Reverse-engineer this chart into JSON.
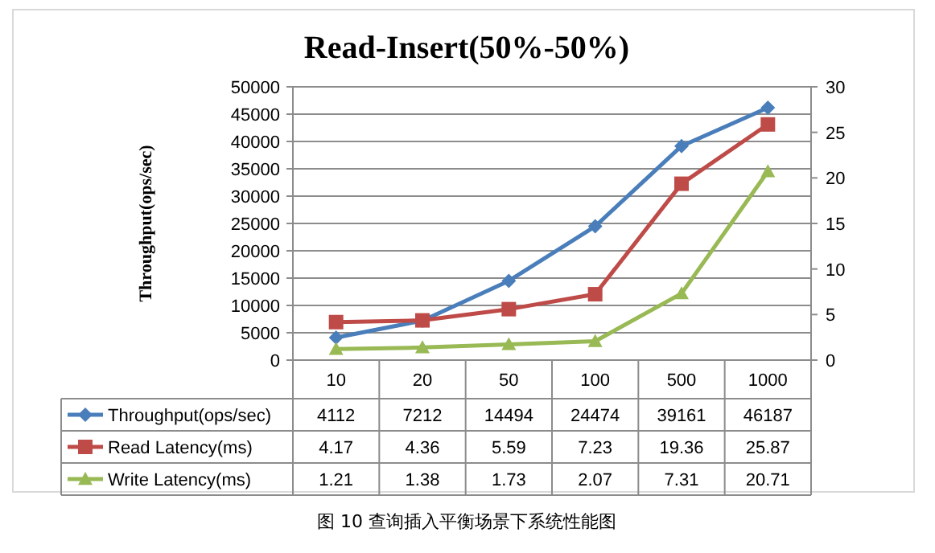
{
  "chart_data": {
    "type": "line",
    "title": "Read-Insert(50%-50%)",
    "ylabel": "Throughput(ops/sec)",
    "categories": [
      "10",
      "20",
      "50",
      "100",
      "500",
      "1000"
    ],
    "series": [
      {
        "name": "Throughput(ops/sec)",
        "color": "#4a7ebb",
        "marker": "diamond",
        "values": [
          4112,
          7212,
          14494,
          24474,
          39161,
          46187
        ]
      },
      {
        "name": "Read Latency(ms)",
        "color": "#be4b48",
        "marker": "square",
        "axis": "y2",
        "values": [
          4.17,
          4.36,
          5.59,
          7.23,
          19.36,
          25.87
        ]
      },
      {
        "name": "Write Latency(ms)",
        "color": "#98b954",
        "marker": "triangle",
        "axis": "y2",
        "values": [
          1.21,
          1.38,
          1.73,
          2.07,
          7.31,
          20.71
        ]
      }
    ],
    "ylim": [
      0,
      50000
    ],
    "yticks": [
      0,
      5000,
      10000,
      15000,
      20000,
      25000,
      30000,
      35000,
      40000,
      45000,
      50000
    ],
    "y2lim": [
      0,
      30
    ],
    "y2ticks": [
      0,
      5,
      10,
      15,
      20,
      25,
      30
    ],
    "grid": "y",
    "legend": "bottom",
    "data_labels": true,
    "annotations": [
      "图 10 查询插入平衡场景下系统性能图"
    ]
  }
}
